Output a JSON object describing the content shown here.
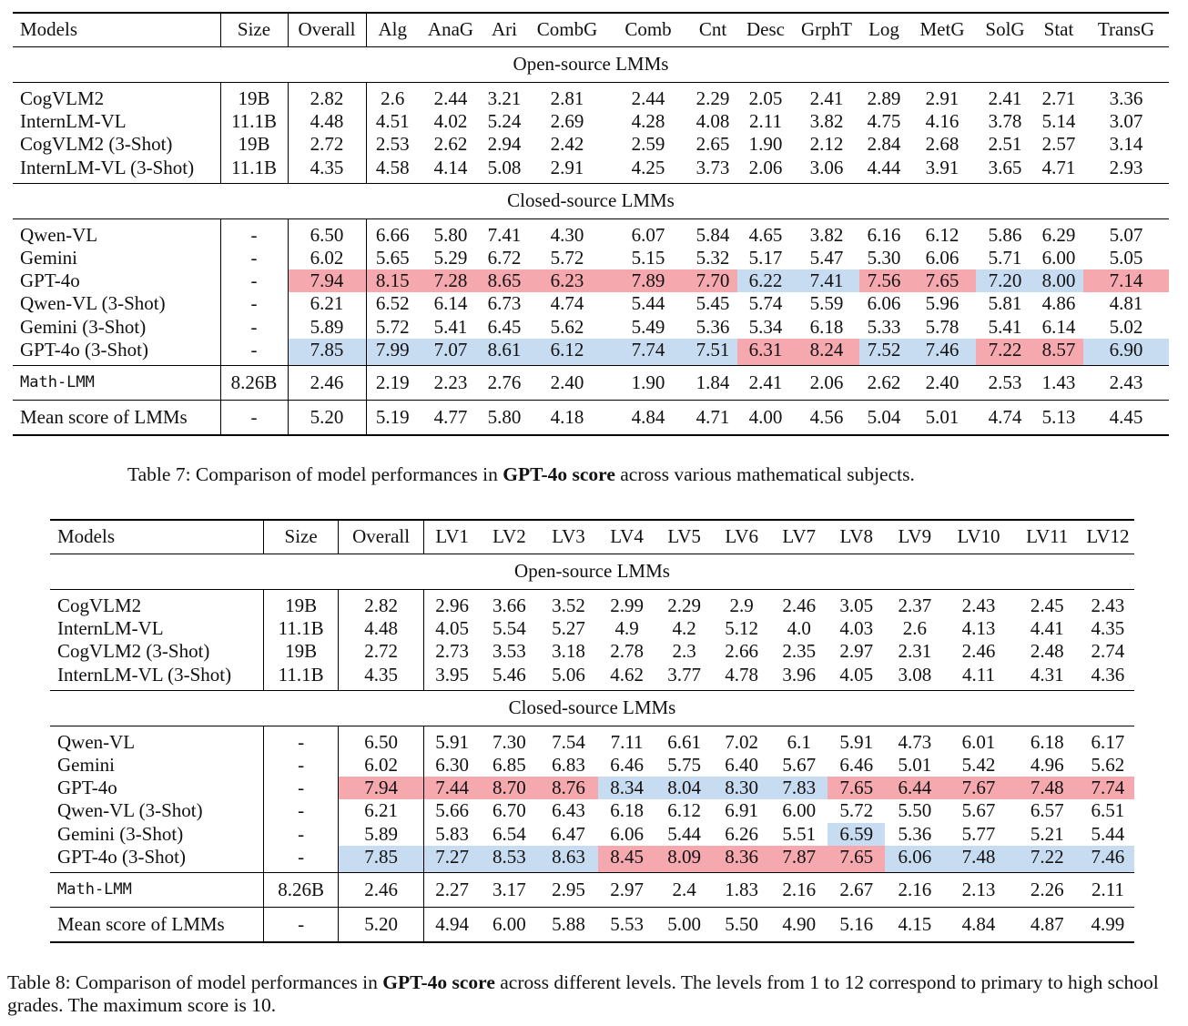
{
  "table7": {
    "columns": [
      "Models",
      "Size",
      "Overall",
      "Alg",
      "AnaG",
      "Ari",
      "CombG",
      "Comb",
      "Cnt",
      "Desc",
      "GrphT",
      "Log",
      "MetG",
      "SolG",
      "Stat",
      "TransG"
    ],
    "sections": [
      {
        "title": "Open-source LMMs",
        "rows": [
          {
            "cells": [
              "CogVLM2",
              "19B",
              "2.82",
              "2.6",
              "2.44",
              "3.21",
              "2.81",
              "2.44",
              "2.29",
              "2.05",
              "2.41",
              "2.89",
              "2.91",
              "2.41",
              "2.71",
              "3.36"
            ]
          },
          {
            "cells": [
              "InternLM-VL",
              "11.1B",
              "4.48",
              "4.51",
              "4.02",
              "5.24",
              "2.69",
              "4.28",
              "4.08",
              "2.11",
              "3.82",
              "4.75",
              "4.16",
              "3.78",
              "5.14",
              "3.07"
            ]
          },
          {
            "cells": [
              "CogVLM2 (3-Shot)",
              "19B",
              "2.72",
              "2.53",
              "2.62",
              "2.94",
              "2.42",
              "2.59",
              "2.65",
              "1.90",
              "2.12",
              "2.84",
              "2.68",
              "2.51",
              "2.57",
              "3.14"
            ]
          },
          {
            "cells": [
              "InternLM-VL (3-Shot)",
              "11.1B",
              "4.35",
              "4.58",
              "4.14",
              "5.08",
              "2.91",
              "4.25",
              "3.73",
              "2.06",
              "3.06",
              "4.44",
              "3.91",
              "3.65",
              "4.71",
              "2.93"
            ]
          }
        ]
      },
      {
        "title": "Closed-source LMMs",
        "rows": [
          {
            "cells": [
              "Qwen-VL",
              "-",
              "6.50",
              "6.66",
              "5.80",
              "7.41",
              "4.30",
              "6.07",
              "5.84",
              "4.65",
              "3.82",
              "6.16",
              "6.12",
              "5.86",
              "6.29",
              "5.07"
            ]
          },
          {
            "cells": [
              "Gemini",
              "-",
              "6.02",
              "5.65",
              "5.29",
              "6.72",
              "5.72",
              "5.15",
              "5.32",
              "5.17",
              "5.47",
              "5.30",
              "6.06",
              "5.71",
              "6.00",
              "5.05"
            ]
          },
          {
            "cells": [
              "GPT-4o",
              "-",
              "7.94",
              "8.15",
              "7.28",
              "8.65",
              "6.23",
              "7.89",
              "7.70",
              "6.22",
              "7.41",
              "7.56",
              "7.65",
              "7.20",
              "8.00",
              "7.14"
            ],
            "highlight": [
              "",
              "",
              "red",
              "red",
              "red",
              "red",
              "red",
              "red",
              "red",
              "blue",
              "blue",
              "red",
              "red",
              "blue",
              "blue",
              "red"
            ]
          },
          {
            "cells": [
              "Qwen-VL (3-Shot)",
              "-",
              "6.21",
              "6.52",
              "6.14",
              "6.73",
              "4.74",
              "5.44",
              "5.45",
              "5.74",
              "5.59",
              "6.06",
              "5.96",
              "5.81",
              "4.86",
              "4.81"
            ]
          },
          {
            "cells": [
              "Gemini (3-Shot)",
              "-",
              "5.89",
              "5.72",
              "5.41",
              "6.45",
              "5.62",
              "5.49",
              "5.36",
              "5.34",
              "6.18",
              "5.33",
              "5.78",
              "5.41",
              "6.14",
              "5.02"
            ]
          },
          {
            "cells": [
              "GPT-4o (3-Shot)",
              "-",
              "7.85",
              "7.99",
              "7.07",
              "8.61",
              "6.12",
              "7.74",
              "7.51",
              "6.31",
              "8.24",
              "7.52",
              "7.46",
              "7.22",
              "8.57",
              "6.90"
            ],
            "highlight": [
              "",
              "",
              "blue",
              "blue",
              "blue",
              "blue",
              "blue",
              "blue",
              "blue",
              "red",
              "red",
              "blue",
              "blue",
              "red",
              "red",
              "blue"
            ]
          }
        ]
      }
    ],
    "extra_rows": [
      {
        "mono": true,
        "cells": [
          "Math-LMM",
          "8.26B",
          "2.46",
          "2.19",
          "2.23",
          "2.76",
          "2.40",
          "1.90",
          "1.84",
          "2.41",
          "2.06",
          "2.62",
          "2.40",
          "2.53",
          "1.43",
          "2.43"
        ]
      },
      {
        "cells": [
          "Mean score of LMMs",
          "-",
          "5.20",
          "5.19",
          "4.77",
          "5.80",
          "4.18",
          "4.84",
          "4.71",
          "4.00",
          "4.56",
          "5.04",
          "5.01",
          "4.74",
          "5.13",
          "4.45"
        ]
      }
    ],
    "caption": {
      "prefix": "Table 7: Comparison of model performances in ",
      "bold": "GPT-4o score",
      "suffix": " across various mathematical subjects."
    }
  },
  "table8": {
    "columns": [
      "Models",
      "Size",
      "Overall",
      "LV1",
      "LV2",
      "LV3",
      "LV4",
      "LV5",
      "LV6",
      "LV7",
      "LV8",
      "LV9",
      "LV10",
      "LV11",
      "LV12"
    ],
    "sections": [
      {
        "title": "Open-source LMMs",
        "rows": [
          {
            "cells": [
              "CogVLM2",
              "19B",
              "2.82",
              "2.96",
              "3.66",
              "3.52",
              "2.99",
              "2.29",
              "2.9",
              "2.46",
              "3.05",
              "2.37",
              "2.43",
              "2.45",
              "2.43"
            ]
          },
          {
            "cells": [
              "InternLM-VL",
              "11.1B",
              "4.48",
              "4.05",
              "5.54",
              "5.27",
              "4.9",
              "4.2",
              "5.12",
              "4.0",
              "4.03",
              "2.6",
              "4.13",
              "4.41",
              "4.35"
            ]
          },
          {
            "cells": [
              "CogVLM2 (3-Shot)",
              "19B",
              "2.72",
              "2.73",
              "3.53",
              "3.18",
              "2.78",
              "2.3",
              "2.66",
              "2.35",
              "2.97",
              "2.31",
              "2.46",
              "2.48",
              "2.74"
            ]
          },
          {
            "cells": [
              "InternLM-VL (3-Shot)",
              "11.1B",
              "4.35",
              "3.95",
              "5.46",
              "5.06",
              "4.62",
              "3.77",
              "4.78",
              "3.96",
              "4.05",
              "3.08",
              "4.11",
              "4.31",
              "4.36"
            ]
          }
        ]
      },
      {
        "title": "Closed-source LMMs",
        "rows": [
          {
            "cells": [
              "Qwen-VL",
              "-",
              "6.50",
              "5.91",
              "7.30",
              "7.54",
              "7.11",
              "6.61",
              "7.02",
              "6.1",
              "5.91",
              "4.73",
              "6.01",
              "6.18",
              "6.17"
            ]
          },
          {
            "cells": [
              "Gemini",
              "-",
              "6.02",
              "6.30",
              "6.85",
              "6.83",
              "6.46",
              "5.75",
              "6.40",
              "5.67",
              "6.46",
              "5.01",
              "5.42",
              "4.96",
              "5.62"
            ]
          },
          {
            "cells": [
              "GPT-4o",
              "-",
              "7.94",
              "7.44",
              "8.70",
              "8.76",
              "8.34",
              "8.04",
              "8.30",
              "7.83",
              "7.65",
              "6.44",
              "7.67",
              "7.48",
              "7.74"
            ],
            "highlight": [
              "",
              "",
              "red",
              "red",
              "red",
              "red",
              "blue",
              "blue",
              "blue",
              "blue",
              "red",
              "red",
              "red",
              "red",
              "red"
            ]
          },
          {
            "cells": [
              "Qwen-VL (3-Shot)",
              "-",
              "6.21",
              "5.66",
              "6.70",
              "6.43",
              "6.18",
              "6.12",
              "6.91",
              "6.00",
              "5.72",
              "5.50",
              "5.67",
              "6.57",
              "6.51"
            ]
          },
          {
            "cells": [
              "Gemini (3-Shot)",
              "-",
              "5.89",
              "5.83",
              "6.54",
              "6.47",
              "6.06",
              "5.44",
              "6.26",
              "5.51",
              "6.59",
              "5.36",
              "5.77",
              "5.21",
              "5.44"
            ],
            "highlight": [
              "",
              "",
              "",
              "",
              "",
              "",
              "",
              "",
              "",
              "",
              "blue",
              "",
              "",
              "",
              ""
            ]
          },
          {
            "cells": [
              "GPT-4o (3-Shot)",
              "-",
              "7.85",
              "7.27",
              "8.53",
              "8.63",
              "8.45",
              "8.09",
              "8.36",
              "7.87",
              "7.65",
              "6.06",
              "7.48",
              "7.22",
              "7.46"
            ],
            "highlight": [
              "",
              "",
              "blue",
              "blue",
              "blue",
              "blue",
              "red",
              "red",
              "red",
              "red",
              "red",
              "blue",
              "blue",
              "blue",
              "blue"
            ]
          }
        ]
      }
    ],
    "extra_rows": [
      {
        "mono": true,
        "cells": [
          "Math-LMM",
          "8.26B",
          "2.46",
          "2.27",
          "3.17",
          "2.95",
          "2.97",
          "2.4",
          "1.83",
          "2.16",
          "2.67",
          "2.16",
          "2.13",
          "2.26",
          "2.11"
        ]
      },
      {
        "cells": [
          "Mean score of LMMs",
          "-",
          "5.20",
          "4.94",
          "6.00",
          "5.88",
          "5.53",
          "5.00",
          "5.50",
          "4.90",
          "5.16",
          "4.15",
          "4.84",
          "4.87",
          "4.99"
        ]
      }
    ],
    "caption": {
      "prefix": "Table 8: Comparison of model performances in ",
      "bold": "GPT-4o score",
      "suffix": " across different levels. The levels from 1 to 12 correspond to primary to high school grades. The maximum score is 10."
    }
  }
}
